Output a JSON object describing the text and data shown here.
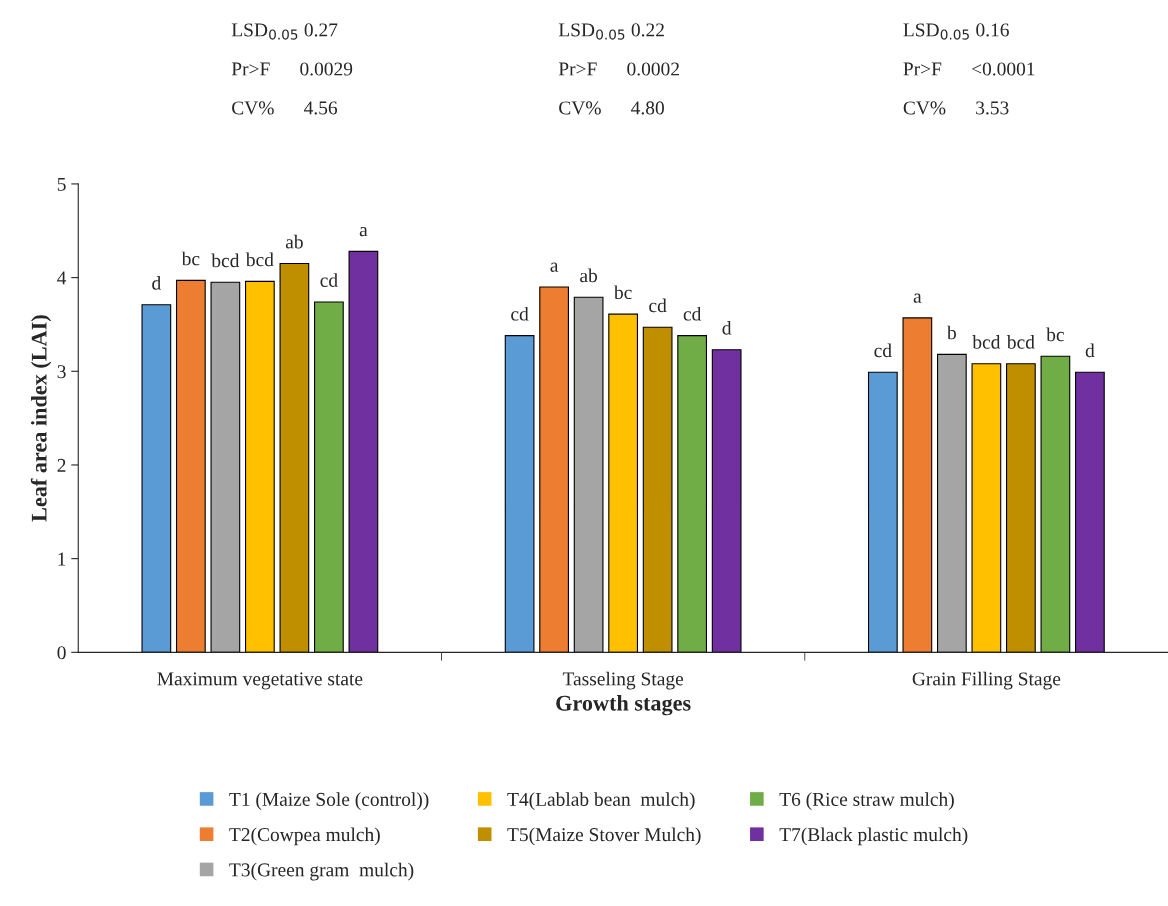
{
  "chart_data": {
    "type": "bar",
    "xlabel": "Growth stages",
    "ylabel": "Leaf area index (LAI)",
    "categories": [
      "Maximum vegetative state",
      "Tasseling Stage",
      "Grain Filling Stage"
    ],
    "series": [
      {
        "name": "T1 (Maize Sole (control))",
        "color": "#5b9bd5",
        "values": [
          3.71,
          3.38,
          2.99
        ],
        "value_labels": [
          "d",
          "cd",
          "cd"
        ]
      },
      {
        "name": "T2(Cowpea mulch)",
        "color": "#ed7d31",
        "values": [
          3.97,
          3.9,
          3.57
        ],
        "value_labels": [
          "bc",
          "a",
          "a"
        ]
      },
      {
        "name": "T3(Green gram  mulch)",
        "color": "#a5a5a5",
        "values": [
          3.95,
          3.79,
          3.18
        ],
        "value_labels": [
          "bcd",
          "ab",
          "b"
        ]
      },
      {
        "name": "T4(Lablab bean  mulch)",
        "color": "#ffc000",
        "values": [
          3.96,
          3.61,
          3.08
        ],
        "value_labels": [
          "bcd",
          "bc",
          "bcd"
        ]
      },
      {
        "name": "T5(Maize Stover Mulch)",
        "color": "#bf8f00",
        "values": [
          4.15,
          3.47,
          3.08
        ],
        "value_labels": [
          "ab",
          "cd",
          "bcd"
        ]
      },
      {
        "name": "T6 (Rice straw mulch)",
        "color": "#70ad47",
        "values": [
          3.74,
          3.38,
          3.16
        ],
        "value_labels": [
          "cd",
          "cd",
          "bc"
        ]
      },
      {
        "name": "T7(Black plastic mulch)",
        "color": "#7030a0",
        "values": [
          4.28,
          3.23,
          2.99
        ],
        "value_labels": [
          "a",
          "d",
          "d"
        ]
      }
    ],
    "ylim": [
      0,
      5
    ],
    "yticks": [
      0,
      1,
      2,
      3,
      4,
      5
    ],
    "grid": false,
    "legend": "bottom",
    "annotations": [
      "LSD$_{0.05}$ 0.27",
      "Pr>F      0.0029",
      "CV%      4.56",
      "LSD$_{0.05}$ 0.22",
      "Pr>F      0.0002",
      "CV%      4.80",
      "LSD$_{0.05}$ 0.16",
      "Pr>F      <0.0001",
      "CV%      3.53"
    ]
  }
}
